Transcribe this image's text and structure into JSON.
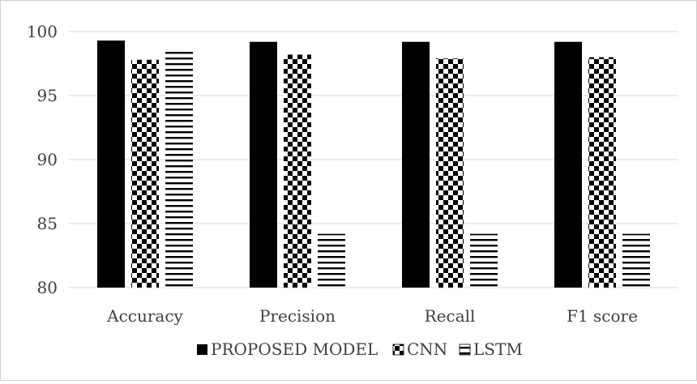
{
  "chart_data": {
    "type": "bar",
    "title": "",
    "xlabel": "",
    "ylabel": "",
    "categories": [
      "Accuracy",
      "Precision",
      "Recall",
      "F1 score"
    ],
    "ylim": [
      80,
      100
    ],
    "yticks": [
      80,
      85,
      90,
      95,
      100
    ],
    "grid": true,
    "legend_position": "bottom",
    "series": [
      {
        "name": "PROPOSED MODEL",
        "values": [
          99.3,
          99.2,
          99.2,
          99.2
        ],
        "pattern": "solid",
        "color": "#000000"
      },
      {
        "name": "CNN",
        "values": [
          97.8,
          98.2,
          97.9,
          98.0
        ],
        "pattern": "checker",
        "color": "#000000"
      },
      {
        "name": "LSTM",
        "values": [
          98.7,
          84.2,
          84.2,
          84.2
        ],
        "pattern": "horizontal-lines",
        "color": "#000000"
      }
    ]
  }
}
